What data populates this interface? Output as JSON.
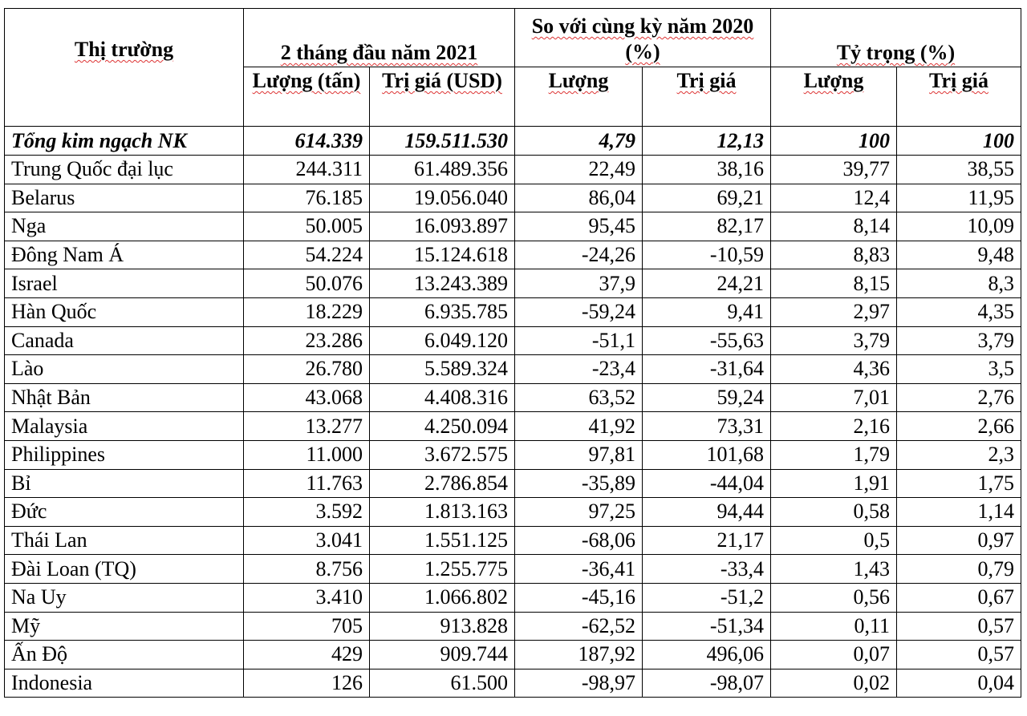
{
  "table": {
    "header": {
      "market": "Thị trường",
      "period": "2 tháng đầu năm 2021",
      "compare": "So với cùng kỳ năm 2020 (%)",
      "share": "Tỷ trọng (%)",
      "sub": [
        "Lượng (tấn)",
        "Trị giá (USD)",
        "Lượng",
        "Trị giá",
        "Lượng",
        "Trị giá"
      ]
    },
    "total": [
      "Tổng kim ngạch NK",
      "614.339",
      "159.511.530",
      "4,79",
      "12,13",
      "100",
      "100"
    ],
    "rows": [
      [
        "Trung Quốc đại lục",
        "244.311",
        "61.489.356",
        "22,49",
        "38,16",
        "39,77",
        "38,55"
      ],
      [
        "Belarus",
        "76.185",
        "19.056.040",
        "86,04",
        "69,21",
        "12,4",
        "11,95"
      ],
      [
        "Nga",
        "50.005",
        "16.093.897",
        "95,45",
        "82,17",
        "8,14",
        "10,09"
      ],
      [
        "Đông Nam Á",
        "54.224",
        "15.124.618",
        "-24,26",
        "-10,59",
        "8,83",
        "9,48"
      ],
      [
        "Israel",
        "50.076",
        "13.243.389",
        "37,9",
        "24,21",
        "8,15",
        "8,3"
      ],
      [
        "Hàn Quốc",
        "18.229",
        "6.935.785",
        "-59,24",
        "9,41",
        "2,97",
        "4,35"
      ],
      [
        "Canada",
        "23.286",
        "6.049.120",
        "-51,1",
        "-55,63",
        "3,79",
        "3,79"
      ],
      [
        "Lào",
        "26.780",
        "5.589.324",
        "-23,4",
        "-31,64",
        "4,36",
        "3,5"
      ],
      [
        "Nhật Bản",
        "43.068",
        "4.408.316",
        "63,52",
        "59,24",
        "7,01",
        "2,76"
      ],
      [
        "Malaysia",
        "13.277",
        "4.250.094",
        "41,92",
        "73,31",
        "2,16",
        "2,66"
      ],
      [
        "Philippines",
        "11.000",
        "3.672.575",
        "97,81",
        "101,68",
        "1,79",
        "2,3"
      ],
      [
        "Bỉ",
        "11.763",
        "2.786.854",
        "-35,89",
        "-44,04",
        "1,91",
        "1,75"
      ],
      [
        "Đức",
        "3.592",
        "1.813.163",
        "97,25",
        "94,44",
        "0,58",
        "1,14"
      ],
      [
        "Thái Lan",
        "3.041",
        "1.551.125",
        "-68,06",
        "21,17",
        "0,5",
        "0,97"
      ],
      [
        "Đài Loan (TQ)",
        "8.756",
        "1.255.775",
        "-36,41",
        "-33,4",
        "1,43",
        "0,79"
      ],
      [
        "Na Uy",
        "3.410",
        "1.066.802",
        "-45,16",
        "-51,2",
        "0,56",
        "0,67"
      ],
      [
        "Mỹ",
        "705",
        "913.828",
        "-62,52",
        "-51,34",
        "0,11",
        "0,57"
      ],
      [
        "Ấn Độ",
        "429",
        "909.744",
        "187,92",
        "496,06",
        "0,07",
        "0,57"
      ],
      [
        "Indonesia",
        "126",
        "61.500",
        "-98,97",
        "-98,07",
        "0,02",
        "0,04"
      ]
    ]
  }
}
